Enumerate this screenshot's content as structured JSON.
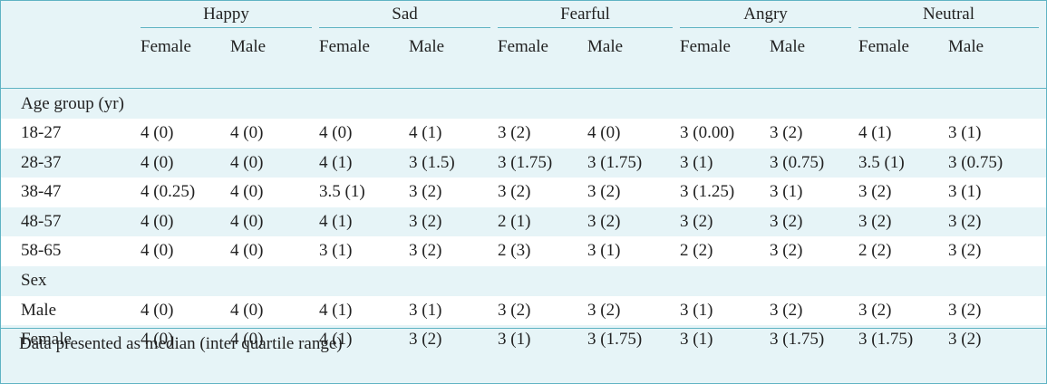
{
  "emotions": [
    "Happy",
    "Sad",
    "Fearful",
    "Angry",
    "Neutral"
  ],
  "sexes": [
    "Female",
    "Male"
  ],
  "sections": [
    {
      "title": "Age group (yr)",
      "rows": [
        {
          "label": "18-27",
          "values": [
            "4 (0)",
            "4 (0)",
            "4 (0)",
            "4 (1)",
            "3 (2)",
            "4 (0)",
            "3 (0.00)",
            "3 (2)",
            "4 (1)",
            "3 (1)"
          ]
        },
        {
          "label": "28-37",
          "values": [
            "4 (0)",
            "4 (0)",
            "4 (1)",
            "3 (1.5)",
            "3 (1.75)",
            "3 (1.75)",
            "3 (1)",
            "3 (0.75)",
            "3.5 (1)",
            "3 (0.75)"
          ]
        },
        {
          "label": "38-47",
          "values": [
            "4 (0.25)",
            "4 (0)",
            "3.5 (1)",
            "3 (2)",
            "3 (2)",
            "3 (2)",
            "3 (1.25)",
            "3 (1)",
            "3 (2)",
            "3 (1)"
          ]
        },
        {
          "label": "48-57",
          "values": [
            "4 (0)",
            "4 (0)",
            "4 (1)",
            "3 (2)",
            "2 (1)",
            "3 (2)",
            "3 (2)",
            "3 (2)",
            "3 (2)",
            "3 (2)"
          ]
        },
        {
          "label": "58-65",
          "values": [
            "4 (0)",
            "4 (0)",
            "3 (1)",
            "3 (2)",
            "2 (3)",
            "3 (1)",
            "2 (2)",
            "3 (2)",
            "2 (2)",
            "3 (2)"
          ]
        }
      ]
    },
    {
      "title": "Sex",
      "rows": [
        {
          "label": "Male",
          "values": [
            "4 (0)",
            "4 (0)",
            "4 (1)",
            "3 (1)",
            "3 (2)",
            "3 (2)",
            "3 (1)",
            "3 (2)",
            "3 (2)",
            "3 (2)"
          ]
        },
        {
          "label": "Female",
          "values": [
            "4 (0)",
            "4 (0)",
            "4 (1)",
            "3 (2)",
            "3 (1)",
            "3 (1.75)",
            "3 (1)",
            "3 (1.75)",
            "3 (1.75)",
            "3 (2)"
          ]
        }
      ]
    }
  ],
  "footnote": "Data presented as median (inter quartile range)",
  "colors": {
    "background": "#e6f4f7",
    "stripe": "#ffffff",
    "rule": "#5fb3c3"
  }
}
